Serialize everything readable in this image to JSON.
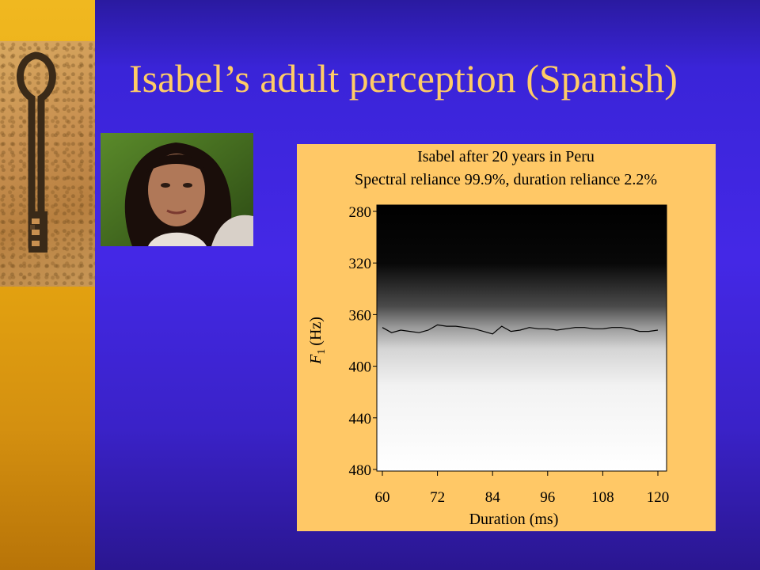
{
  "slide": {
    "title": "Isabel’s adult perception (Spanish)"
  },
  "colors": {
    "background": "#3a24d8",
    "title": "#ffcc66",
    "accent_strip": "#e8a810",
    "chart_panel": "#ffc866"
  },
  "decorations": {
    "left_image": "key-icon",
    "photo": "woman-portrait"
  },
  "chart_data": {
    "type": "heatmap",
    "title": "Isabel after 20 years in Peru",
    "subtitle": "Spectral reliance 99.9%, duration reliance 2.2%",
    "xlabel": "Duration (ms)",
    "ylabel_var": "F",
    "ylabel_sub": "1",
    "ylabel_unit": "(Hz)",
    "xlim": [
      60,
      120
    ],
    "ylim": [
      480,
      280
    ],
    "x_ticks": [
      60,
      72,
      84,
      96,
      108,
      120
    ],
    "y_ticks": [
      280,
      320,
      360,
      400,
      440,
      480
    ],
    "colormap": "black (top, lower F1) to white (bottom, higher F1)",
    "boundary": {
      "x": [
        60,
        62,
        64,
        66,
        68,
        70,
        72,
        74,
        76,
        78,
        80,
        82,
        84,
        86,
        88,
        90,
        92,
        94,
        96,
        98,
        100,
        102,
        104,
        106,
        108,
        110,
        112,
        114,
        116,
        118,
        120
      ],
      "y": [
        370,
        374,
        372,
        373,
        374,
        372,
        368,
        369,
        369,
        370,
        371,
        373,
        375,
        369,
        373,
        372,
        370,
        371,
        371,
        372,
        371,
        370,
        370,
        371,
        371,
        370,
        370,
        371,
        373,
        373,
        372
      ]
    }
  }
}
